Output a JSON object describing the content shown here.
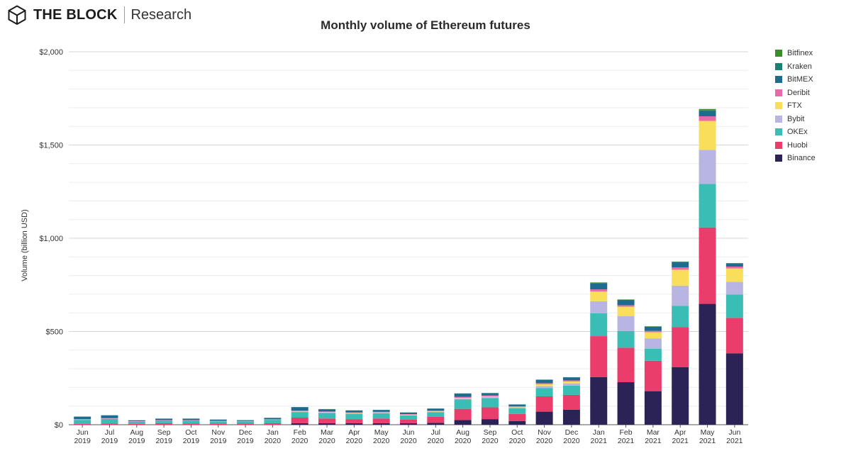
{
  "header": {
    "brand_name": "THE BLOCK",
    "brand_sub": "Research",
    "logo": "the-block-cube-logo"
  },
  "chart_data": {
    "type": "bar",
    "stacked": true,
    "title": "Monthly volume of Ethereum futures",
    "xlabel": "",
    "ylabel": "Volume (billion USD)",
    "ylim": [
      0,
      2000
    ],
    "yticks": [
      0,
      500,
      1000,
      1500,
      2000
    ],
    "ytick_labels": [
      "$0",
      "$500",
      "$1,000",
      "$1,500",
      "$2,000"
    ],
    "grid": true,
    "legend_position": "right",
    "categories": [
      [
        "Jun",
        "2019"
      ],
      [
        "Jul",
        "2019"
      ],
      [
        "Aug",
        "2019"
      ],
      [
        "Sep",
        "2019"
      ],
      [
        "Oct",
        "2019"
      ],
      [
        "Nov",
        "2019"
      ],
      [
        "Dec",
        "2019"
      ],
      [
        "Jan",
        "2020"
      ],
      [
        "Feb",
        "2020"
      ],
      [
        "Mar",
        "2020"
      ],
      [
        "Apr",
        "2020"
      ],
      [
        "May",
        "2020"
      ],
      [
        "Jun",
        "2020"
      ],
      [
        "Jul",
        "2020"
      ],
      [
        "Aug",
        "2020"
      ],
      [
        "Sep",
        "2020"
      ],
      [
        "Oct",
        "2020"
      ],
      [
        "Nov",
        "2020"
      ],
      [
        "Dec",
        "2020"
      ],
      [
        "Jan",
        "2021"
      ],
      [
        "Feb",
        "2021"
      ],
      [
        "Mar",
        "2021"
      ],
      [
        "Apr",
        "2021"
      ],
      [
        "May",
        "2021"
      ],
      [
        "Jun",
        "2021"
      ]
    ],
    "series": [
      {
        "name": "Binance",
        "color": "#2b2255",
        "values": [
          0,
          0,
          0,
          0,
          0,
          0,
          0,
          0,
          8,
          8,
          8,
          8,
          8,
          10,
          25,
          30,
          20,
          70,
          80,
          255,
          228,
          180,
          308,
          648,
          383
        ]
      },
      {
        "name": "Huobi",
        "color": "#ea3d6b",
        "values": [
          4,
          6,
          5,
          8,
          7,
          6,
          6,
          8,
          30,
          25,
          22,
          25,
          20,
          32,
          60,
          63,
          38,
          82,
          80,
          220,
          185,
          163,
          215,
          410,
          190
        ]
      },
      {
        "name": "OKEx",
        "color": "#3abdb5",
        "values": [
          22,
          25,
          11,
          13,
          14,
          12,
          11,
          18,
          30,
          30,
          28,
          28,
          22,
          25,
          50,
          50,
          30,
          45,
          50,
          122,
          90,
          65,
          115,
          233,
          125
        ]
      },
      {
        "name": "Bybit",
        "color": "#b9b5e3",
        "values": [
          2,
          2,
          2,
          2,
          2,
          2,
          2,
          2,
          3,
          3,
          3,
          3,
          2,
          3,
          5,
          5,
          5,
          10,
          12,
          65,
          80,
          55,
          108,
          183,
          68
        ]
      },
      {
        "name": "FTX",
        "color": "#f9de5c",
        "values": [
          0,
          0,
          0,
          0,
          0,
          0,
          0,
          0,
          2,
          2,
          2,
          2,
          2,
          3,
          4,
          4,
          3,
          10,
          10,
          52,
          50,
          33,
          85,
          155,
          72
        ]
      },
      {
        "name": "Deribit",
        "color": "#e86aa9",
        "values": [
          2,
          2,
          1,
          2,
          2,
          1,
          1,
          1,
          3,
          3,
          3,
          3,
          3,
          3,
          5,
          5,
          3,
          6,
          6,
          12,
          8,
          7,
          13,
          25,
          10
        ]
      },
      {
        "name": "BitMEX",
        "color": "#1d6b8f",
        "values": [
          13,
          15,
          4,
          7,
          7,
          6,
          4,
          7,
          18,
          12,
          10,
          10,
          8,
          10,
          18,
          12,
          9,
          18,
          16,
          33,
          28,
          22,
          27,
          30,
          15
        ]
      },
      {
        "name": "Kraken",
        "color": "#198272",
        "values": [
          1,
          1,
          1,
          1,
          1,
          1,
          1,
          1,
          1,
          1,
          1,
          1,
          1,
          1,
          1,
          1,
          1,
          1,
          1,
          1,
          1,
          1,
          1,
          1,
          1
        ]
      },
      {
        "name": "Bitfinex",
        "color": "#3b8c2c",
        "values": [
          0,
          0,
          0,
          0,
          0,
          0,
          0,
          0,
          0,
          0,
          0,
          0,
          0,
          0,
          0,
          0,
          0,
          0,
          0,
          3,
          2,
          2,
          3,
          8,
          3
        ]
      }
    ],
    "legend_order": [
      "Bitfinex",
      "Kraken",
      "BitMEX",
      "Deribit",
      "FTX",
      "Bybit",
      "OKEx",
      "Huobi",
      "Binance"
    ]
  }
}
